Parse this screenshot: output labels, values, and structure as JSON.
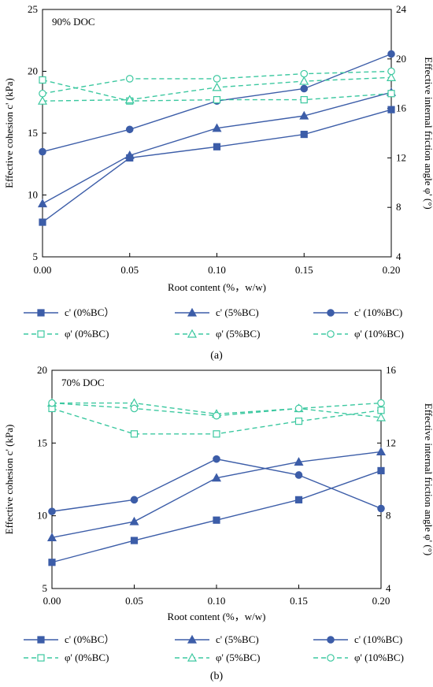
{
  "colors": {
    "cohesion": "#3C5DA8",
    "friction": "#3CC8A0"
  },
  "chart_data": [
    {
      "type": "line",
      "panel_label": "(a)",
      "annotation": "90% DOC",
      "xlabel": "Root content (%，w/w)",
      "ylabel_left": "Effective cohesion c' (kPa)",
      "ylabel_right": "Effective internal friction angle φ' (°)",
      "x": [
        0.0,
        0.05,
        0.1,
        0.15,
        0.2
      ],
      "x_tick_labels": [
        "0.00",
        "0.05",
        "0.10",
        "0.15",
        "0.20"
      ],
      "xlim": [
        0,
        0.2
      ],
      "ylim_left": [
        5,
        25
      ],
      "yticks_left": [
        5,
        10,
        15,
        20,
        25
      ],
      "ylim_right": [
        4,
        24
      ],
      "yticks_right": [
        4,
        8,
        12,
        16,
        20,
        24
      ],
      "series": [
        {
          "name": "c' (0%BC）",
          "axis": "left",
          "marker": "square",
          "style": "solid",
          "values": [
            7.8,
            13.0,
            13.9,
            14.9,
            16.9
          ]
        },
        {
          "name": "c' (5%BC)",
          "axis": "left",
          "marker": "triangle",
          "style": "solid",
          "values": [
            9.3,
            13.2,
            15.4,
            16.4,
            18.3
          ]
        },
        {
          "name": "c' (10%BC)",
          "axis": "left",
          "marker": "circle",
          "style": "solid",
          "values": [
            13.5,
            15.3,
            17.6,
            18.6,
            21.4
          ]
        },
        {
          "name": "φ' (0%BC)",
          "axis": "right",
          "marker": "square",
          "style": "dashed",
          "values": [
            18.3,
            16.6,
            16.7,
            16.7,
            17.2
          ]
        },
        {
          "name": "φ' (5%BC)",
          "axis": "right",
          "marker": "triangle",
          "style": "dashed",
          "values": [
            16.6,
            16.7,
            17.7,
            18.2,
            18.5
          ]
        },
        {
          "name": "φ' (10%BC)",
          "axis": "right",
          "marker": "circle",
          "style": "dashed",
          "values": [
            17.2,
            18.4,
            18.4,
            18.8,
            19.0
          ]
        }
      ]
    },
    {
      "type": "line",
      "panel_label": "(b)",
      "annotation": "70% DOC",
      "xlabel": "Root content (%，w/w)",
      "ylabel_left": "Effective cohesion c' (kPa)",
      "ylabel_right": "Effective internal friction angle φ' (°)",
      "x": [
        0.0,
        0.05,
        0.1,
        0.15,
        0.2
      ],
      "x_tick_labels": [
        "0.00",
        "0.05",
        "0.10",
        "0.15",
        "0.20"
      ],
      "xlim": [
        0,
        0.2
      ],
      "ylim_left": [
        5,
        20
      ],
      "yticks_left": [
        5,
        10,
        15,
        20
      ],
      "ylim_right": [
        4,
        16
      ],
      "yticks_right": [
        4,
        8,
        12,
        16
      ],
      "series": [
        {
          "name": "c' (0%BC）",
          "axis": "left",
          "marker": "square",
          "style": "solid",
          "values": [
            6.8,
            8.3,
            9.7,
            11.1,
            13.1
          ]
        },
        {
          "name": "c' (5%BC)",
          "axis": "left",
          "marker": "triangle",
          "style": "solid",
          "values": [
            8.5,
            9.6,
            12.6,
            13.7,
            14.4
          ]
        },
        {
          "name": "c' (10%BC)",
          "axis": "left",
          "marker": "circle",
          "style": "solid",
          "values": [
            10.3,
            11.1,
            13.9,
            12.8,
            10.5
          ]
        },
        {
          "name": "φ' (0%BC)",
          "axis": "right",
          "marker": "square",
          "style": "dashed",
          "values": [
            13.9,
            12.5,
            12.5,
            13.2,
            13.8
          ]
        },
        {
          "name": "φ' (5%BC)",
          "axis": "right",
          "marker": "triangle",
          "style": "dashed",
          "values": [
            14.2,
            14.2,
            13.6,
            13.9,
            13.4
          ]
        },
        {
          "name": "φ' (10%BC)",
          "axis": "right",
          "marker": "circle",
          "style": "dashed",
          "values": [
            14.2,
            13.9,
            13.5,
            13.9,
            14.2
          ]
        }
      ]
    }
  ]
}
